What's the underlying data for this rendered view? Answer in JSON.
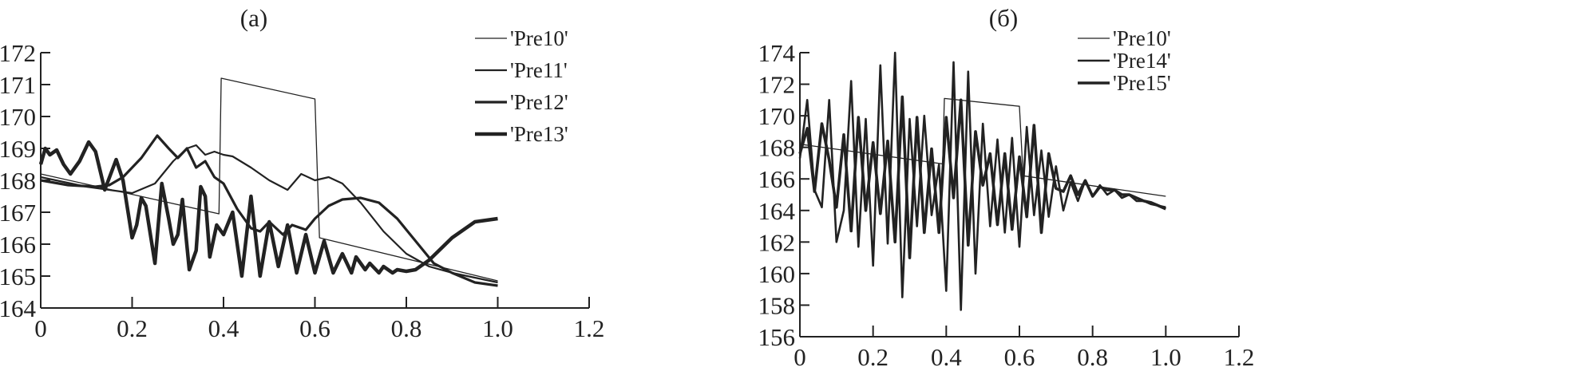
{
  "chart_data": [
    {
      "type": "line",
      "title": "(a)",
      "xlim": [
        0,
        1.2
      ],
      "ylim": [
        164,
        172
      ],
      "x_ticks": [
        "0",
        "0.2",
        "0.4",
        "0.6",
        "0.8",
        "1.0",
        "1.2"
      ],
      "y_ticks": [
        "164",
        "165",
        "166",
        "167",
        "168",
        "169",
        "170",
        "171",
        "172"
      ],
      "legend_position": "top-right",
      "grid": false,
      "series": [
        {
          "name": "'Pre10'",
          "x": [
            0,
            0.39,
            0.395,
            0.6,
            0.61,
            1.0
          ],
          "y": [
            168.2,
            166.95,
            171.2,
            170.55,
            166.2,
            164.85
          ]
        },
        {
          "name": "'Pre11'",
          "x": [
            0,
            0.1,
            0.2,
            0.25,
            0.29,
            0.32,
            0.34,
            0.36,
            0.38,
            0.4,
            0.42,
            0.46,
            0.5,
            0.54,
            0.57,
            0.6,
            0.63,
            0.66,
            0.7,
            0.75,
            0.8,
            0.85,
            0.9,
            1.0
          ],
          "y": [
            168.1,
            167.8,
            167.6,
            167.9,
            168.6,
            169.0,
            169.1,
            168.8,
            168.9,
            168.8,
            168.75,
            168.4,
            168.0,
            167.7,
            168.2,
            168.0,
            168.1,
            167.9,
            167.3,
            166.4,
            165.7,
            165.3,
            165.1,
            164.8
          ]
        },
        {
          "name": "'Pre12'",
          "x": [
            0,
            0.06,
            0.12,
            0.15,
            0.18,
            0.22,
            0.255,
            0.28,
            0.3,
            0.32,
            0.34,
            0.36,
            0.38,
            0.4,
            0.43,
            0.46,
            0.48,
            0.5,
            0.53,
            0.55,
            0.58,
            0.6,
            0.63,
            0.66,
            0.7,
            0.74,
            0.78,
            0.82,
            0.86,
            0.9,
            0.95,
            1.0
          ],
          "y": [
            168.0,
            167.85,
            167.8,
            167.85,
            168.1,
            168.7,
            169.4,
            169.0,
            168.7,
            169.0,
            168.4,
            168.6,
            168.1,
            167.9,
            167.1,
            166.5,
            166.4,
            166.7,
            166.3,
            166.6,
            166.45,
            166.8,
            167.2,
            167.4,
            167.45,
            167.3,
            166.8,
            166.1,
            165.4,
            165.1,
            164.8,
            164.7
          ]
        },
        {
          "name": "'Pre13'",
          "x": [
            0,
            0.01,
            0.02,
            0.035,
            0.05,
            0.065,
            0.085,
            0.105,
            0.12,
            0.14,
            0.165,
            0.18,
            0.2,
            0.21,
            0.22,
            0.23,
            0.25,
            0.265,
            0.28,
            0.29,
            0.3,
            0.31,
            0.325,
            0.34,
            0.35,
            0.36,
            0.37,
            0.385,
            0.4,
            0.42,
            0.44,
            0.46,
            0.48,
            0.5,
            0.52,
            0.54,
            0.56,
            0.58,
            0.6,
            0.62,
            0.64,
            0.66,
            0.68,
            0.69,
            0.71,
            0.72,
            0.74,
            0.75,
            0.77,
            0.78,
            0.8,
            0.82,
            0.85,
            0.9,
            0.95,
            1.0
          ],
          "y": [
            168.5,
            169.0,
            168.8,
            168.95,
            168.5,
            168.2,
            168.6,
            169.2,
            168.9,
            167.7,
            168.65,
            168.0,
            166.2,
            166.6,
            167.45,
            167.2,
            165.4,
            167.9,
            166.8,
            166.0,
            166.3,
            167.4,
            165.2,
            165.8,
            167.8,
            167.5,
            165.6,
            166.6,
            166.3,
            167.0,
            165.0,
            167.5,
            165.0,
            166.7,
            165.3,
            166.6,
            165.1,
            166.3,
            165.1,
            166.1,
            165.1,
            165.7,
            165.1,
            165.6,
            165.2,
            165.4,
            165.1,
            165.3,
            165.1,
            165.2,
            165.15,
            165.2,
            165.5,
            166.2,
            166.7,
            166.8
          ]
        }
      ]
    },
    {
      "type": "line",
      "title": "(б)",
      "xlim": [
        0,
        1.2
      ],
      "ylim": [
        156,
        174
      ],
      "x_ticks": [
        "0",
        "0.2",
        "0.4",
        "0.6",
        "0.8",
        "1.0",
        "1.2"
      ],
      "y_ticks": [
        "156",
        "158",
        "160",
        "162",
        "164",
        "166",
        "168",
        "170",
        "172",
        "174"
      ],
      "legend_position": "top-right",
      "grid": false,
      "series": [
        {
          "name": "'Pre10'",
          "x": [
            0,
            0.39,
            0.395,
            0.6,
            0.61,
            1.0
          ],
          "y": [
            168.2,
            166.95,
            171.1,
            170.6,
            166.2,
            164.9
          ]
        },
        {
          "name": "'Pre14'",
          "x": [
            0,
            0.02,
            0.04,
            0.06,
            0.08,
            0.1,
            0.12,
            0.14,
            0.16,
            0.18,
            0.2,
            0.22,
            0.24,
            0.26,
            0.28,
            0.3,
            0.32,
            0.34,
            0.36,
            0.38,
            0.4,
            0.42,
            0.44,
            0.46,
            0.48,
            0.5,
            0.52,
            0.54,
            0.56,
            0.58,
            0.6,
            0.62,
            0.64,
            0.66,
            0.68,
            0.7,
            0.72,
            0.74,
            0.76,
            0.78,
            0.8,
            0.82,
            0.84,
            0.86,
            0.88,
            0.9,
            0.92,
            0.94,
            0.96,
            0.98,
            1.0
          ],
          "y": [
            167.3,
            171.0,
            165.3,
            164.2,
            171.0,
            162.0,
            164.0,
            172.2,
            161.7,
            169.8,
            160.5,
            173.2,
            161.9,
            174.0,
            158.5,
            169.8,
            163.0,
            170.0,
            163.7,
            166.9,
            158.9,
            173.4,
            157.7,
            172.8,
            160.0,
            169.5,
            163.0,
            168.5,
            162.6,
            168.6,
            161.7,
            169.3,
            163.7,
            167.8,
            163.6,
            166.8,
            164.0,
            165.8,
            164.6,
            165.9,
            164.9,
            165.6,
            165.0,
            165.3,
            164.8,
            165.0,
            164.6,
            164.6,
            164.4,
            164.3,
            164.2
          ]
        },
        {
          "name": "'Pre15'",
          "x": [
            0,
            0.02,
            0.04,
            0.06,
            0.08,
            0.1,
            0.12,
            0.14,
            0.16,
            0.18,
            0.2,
            0.22,
            0.24,
            0.26,
            0.28,
            0.3,
            0.32,
            0.34,
            0.36,
            0.38,
            0.4,
            0.42,
            0.44,
            0.46,
            0.48,
            0.5,
            0.52,
            0.54,
            0.56,
            0.58,
            0.6,
            0.62,
            0.64,
            0.66,
            0.68,
            0.7,
            0.72,
            0.74,
            0.76,
            0.78,
            0.8,
            0.82,
            0.84,
            0.86,
            0.88,
            0.9,
            0.92,
            0.94,
            0.96,
            0.98,
            1.0
          ],
          "y": [
            167.6,
            169.2,
            165.2,
            169.5,
            167.2,
            164.2,
            168.8,
            162.7,
            169.9,
            164.0,
            168.3,
            163.8,
            168.4,
            162.0,
            171.2,
            161.0,
            169.9,
            162.6,
            167.9,
            162.6,
            169.9,
            164.8,
            171.0,
            161.8,
            169.0,
            165.6,
            167.6,
            163.1,
            167.6,
            162.8,
            167.4,
            163.6,
            169.4,
            162.6,
            167.6,
            165.4,
            165.2,
            166.2,
            165.0,
            165.9,
            164.9,
            165.5,
            165.3,
            165.3,
            165.0,
            165.0,
            164.8,
            164.6,
            164.5,
            164.3,
            164.1
          ]
        }
      ]
    }
  ],
  "colors": {
    "line": "#222222"
  }
}
